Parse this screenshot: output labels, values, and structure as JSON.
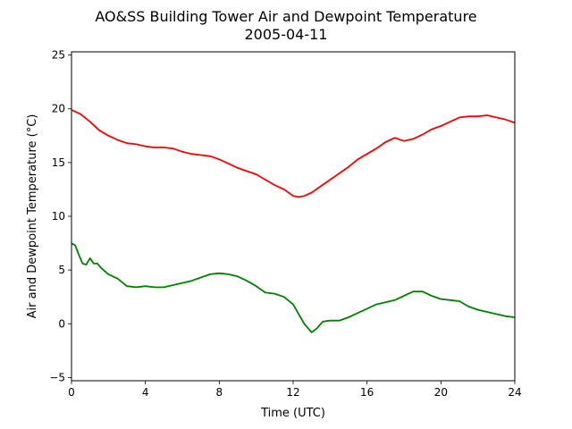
{
  "chart_data": {
    "type": "line",
    "title": "AO&SS Building Tower Air and Dewpoint Temperature",
    "subtitle": "2005-04-11",
    "xlabel": "Time (UTC)",
    "ylabel": "Air and Dewpoint Temperature (°C)",
    "xlim": [
      0,
      24
    ],
    "ylim": [
      -5.3,
      25.3
    ],
    "xticks": [
      0,
      4,
      8,
      12,
      16,
      20,
      24
    ],
    "yticks": [
      -5,
      0,
      5,
      10,
      15,
      20,
      25
    ],
    "grid": false,
    "legend": "none",
    "series": [
      {
        "color": "#ff0000",
        "x": [
          0,
          0.5,
          1,
          1.5,
          2,
          2.5,
          3,
          3.5,
          4,
          4.5,
          5,
          5.5,
          6,
          6.5,
          7,
          7.5,
          8,
          8.5,
          9,
          9.5,
          10,
          10.5,
          11,
          11.5,
          12,
          12.3,
          12.6,
          13,
          13.5,
          14,
          14.5,
          15,
          15.5,
          16,
          16.5,
          17,
          17.5,
          18,
          18.5,
          19,
          19.5,
          20,
          20.5,
          21,
          21.5,
          22,
          22.5,
          23,
          23.5,
          24
        ],
        "y": [
          19.9,
          19.5,
          18.8,
          18.0,
          17.5,
          17.1,
          16.8,
          16.7,
          16.5,
          16.4,
          16.4,
          16.3,
          16.0,
          15.8,
          15.7,
          15.6,
          15.3,
          14.9,
          14.5,
          14.2,
          13.9,
          13.4,
          12.9,
          12.5,
          11.9,
          11.8,
          11.9,
          12.2,
          12.8,
          13.4,
          14.0,
          14.6,
          15.3,
          15.8,
          16.3,
          16.9,
          17.3,
          17.0,
          17.2,
          17.6,
          18.1,
          18.4,
          18.8,
          19.2,
          19.3,
          19.3,
          19.4,
          19.2,
          19.0,
          18.7
        ]
      },
      {
        "color": "#008000",
        "x": [
          0,
          0.2,
          0.4,
          0.6,
          0.8,
          1,
          1.2,
          1.4,
          1.6,
          2,
          2.5,
          3,
          3.5,
          4,
          4.5,
          5,
          5.5,
          6,
          6.5,
          7,
          7.5,
          8,
          8.5,
          9,
          9.5,
          10,
          10.5,
          11,
          11.5,
          12,
          12.3,
          12.6,
          13,
          13.3,
          13.6,
          14,
          14.5,
          15,
          15.5,
          16,
          16.5,
          17,
          17.5,
          18,
          18.5,
          19,
          19.5,
          20,
          20.5,
          21,
          21.5,
          22,
          22.5,
          23,
          23.5,
          24
        ],
        "y": [
          7.5,
          7.3,
          6.4,
          5.6,
          5.5,
          6.1,
          5.6,
          5.6,
          5.2,
          4.6,
          4.2,
          3.5,
          3.4,
          3.5,
          3.4,
          3.4,
          3.6,
          3.8,
          4.0,
          4.3,
          4.6,
          4.7,
          4.6,
          4.4,
          4.0,
          3.5,
          2.9,
          2.8,
          2.5,
          1.8,
          0.9,
          0.0,
          -0.8,
          -0.4,
          0.2,
          0.3,
          0.3,
          0.6,
          1.0,
          1.4,
          1.8,
          2.0,
          2.2,
          2.6,
          3.0,
          3.0,
          2.6,
          2.3,
          2.2,
          2.1,
          1.6,
          1.3,
          1.1,
          0.9,
          0.7,
          0.6
        ]
      }
    ]
  }
}
